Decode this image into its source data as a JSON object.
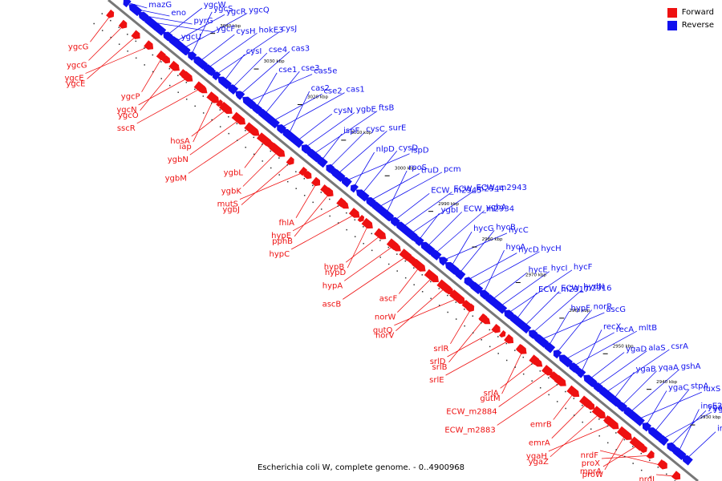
{
  "caption": "Escherichia coli W, complete genome. - 0..4900968",
  "legend": [
    {
      "label": "Forward",
      "color": "#ee1111"
    },
    {
      "label": "Reverse",
      "color": "#1111ee"
    }
  ],
  "colors": {
    "forward": "#ee1111",
    "reverse": "#1111ee",
    "backbone": "#777777"
  },
  "ticks": [
    "3050 kbp",
    "3040 kbp",
    "3030 kbp",
    "3020 kbp",
    "3010 kbp",
    "3000 kbp",
    "2990 kbp",
    "2980 kbp",
    "2970 kbp",
    "2960 kbp",
    "2950 kbp",
    "2940 kbp",
    "2930 kbp"
  ],
  "reverse_labels": [
    "mazG",
    "eno",
    "pyrG",
    "ygcF",
    "ygcU",
    "ygcW",
    "ygcR",
    "ygcQ",
    "ygcS",
    "cysH",
    "hokE3",
    "cysJ",
    "cysI",
    "cse4",
    "cas3",
    "cas5e",
    "cse1",
    "cse3",
    "cse2",
    "cas1",
    "cas2",
    "cysN",
    "ygbE",
    "ftsB",
    "ispF",
    "cysC",
    "surE",
    "ispD",
    "nlpD",
    "cysD",
    "truD",
    "pcm",
    "rpoS",
    "ECW_m2945",
    "ECW_m2944",
    "ECW_m2943",
    "ygbI",
    "ECW_m2934",
    "ygbA",
    "hycC",
    "hycG",
    "hycB",
    "hycD",
    "hycH",
    "hycA",
    "hycE",
    "hycI",
    "hycF",
    "ECW_m2917",
    "ECW_m2916",
    "hydN",
    "ascG",
    "hypF",
    "norR",
    "recA",
    "mltB",
    "recX",
    "ygaD",
    "alaS",
    "csrA",
    "ygaB",
    "yqaA",
    "gshA",
    "luxS",
    "ygaC",
    "stpA",
    "ygaE",
    "ygaU",
    "insE2",
    "insF2"
  ],
  "forward_labels": [
    "ygcG",
    "ygcG",
    "ygcE",
    "ygcE",
    "ygcP",
    "ygcO",
    "ygcN",
    "sscR",
    "iap",
    "hosA",
    "ygbN",
    "ygbM",
    "ygbL",
    "ygbK",
    "ygbJ",
    "mutS",
    "fhlA",
    "pphB",
    "hypE",
    "hypC",
    "hypD",
    "hypB",
    "hypA",
    "ascB",
    "ascF",
    "norW",
    "norV",
    "gutQ",
    "srlR",
    "srlB",
    "srlD",
    "srlE",
    "gutM",
    "srlA",
    "ECW_m2884",
    "ECW_m2883",
    "emrB",
    "emrA",
    "ygaZ",
    "ygaH",
    "proW",
    "mprA",
    "proX",
    "nrdF",
    "nrdI"
  ]
}
